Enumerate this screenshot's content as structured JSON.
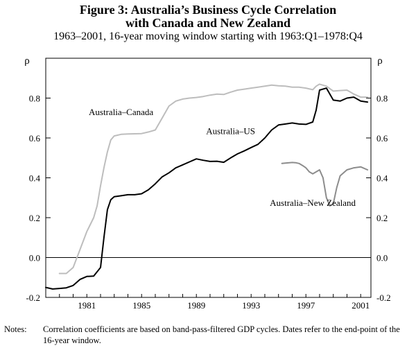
{
  "title_line1": "Figure 3: Australia’s Business Cycle Correlation",
  "title_line2": "with Canada and New Zealand",
  "subtitle": "1963–2001, 16-year moving window starting with 1963:Q1–1978:Q4",
  "notes_label": "Notes:",
  "notes_text": "Correlation coefficients are based on band-pass-filtered GDP cycles. Dates refer to the end-point of the 16-year window.",
  "chart_data": {
    "type": "line",
    "x_unit": "year (end-point of window)",
    "y_axis_label_left": "ρ",
    "y_axis_label_right": "ρ",
    "xlim": [
      1978.0,
      2001.75
    ],
    "ylim": [
      -0.2,
      1.0
    ],
    "x_ticks": [
      1981,
      1985,
      1989,
      1993,
      1997,
      2001
    ],
    "y_ticks": [
      -0.2,
      0.0,
      0.2,
      0.4,
      0.6,
      0.8
    ],
    "y_tick_labels": [
      "-0.2",
      "0.0",
      "0.2",
      "0.4",
      "0.6",
      "0.8"
    ],
    "grid": false,
    "zero_line": true,
    "series": [
      {
        "name": "Australia–US",
        "color": "#000000",
        "x": [
          1978.0,
          1978.5,
          1979.0,
          1979.5,
          1980.0,
          1980.5,
          1981.0,
          1981.5,
          1982.0,
          1982.25,
          1982.5,
          1982.75,
          1983.0,
          1983.5,
          1984.0,
          1984.5,
          1985.0,
          1985.5,
          1986.0,
          1986.5,
          1987.0,
          1987.5,
          1988.0,
          1988.5,
          1989.0,
          1989.5,
          1990.0,
          1990.5,
          1991.0,
          1991.5,
          1992.0,
          1992.5,
          1993.0,
          1993.5,
          1994.0,
          1994.5,
          1995.0,
          1995.5,
          1996.0,
          1996.5,
          1997.0,
          1997.5,
          1997.75,
          1998.0,
          1998.5,
          1999.0,
          1999.5,
          2000.0,
          2000.5,
          2001.0,
          2001.5
        ],
        "y": [
          -0.15,
          -0.158,
          -0.155,
          -0.152,
          -0.14,
          -0.11,
          -0.095,
          -0.093,
          -0.05,
          0.1,
          0.24,
          0.29,
          0.305,
          0.31,
          0.315,
          0.315,
          0.32,
          0.34,
          0.37,
          0.405,
          0.425,
          0.45,
          0.465,
          0.48,
          0.495,
          0.488,
          0.482,
          0.483,
          0.478,
          0.5,
          0.52,
          0.535,
          0.552,
          0.568,
          0.6,
          0.64,
          0.665,
          0.67,
          0.675,
          0.67,
          0.668,
          0.68,
          0.74,
          0.84,
          0.85,
          0.79,
          0.785,
          0.8,
          0.805,
          0.785,
          0.78
        ]
      },
      {
        "name": "Australia–Canada",
        "color": "#bdbdbd",
        "x": [
          1979.0,
          1979.5,
          1980.0,
          1980.5,
          1981.0,
          1981.5,
          1981.75,
          1982.0,
          1982.25,
          1982.5,
          1982.75,
          1983.0,
          1983.5,
          1984.0,
          1984.5,
          1985.0,
          1985.5,
          1986.0,
          1986.5,
          1987.0,
          1987.5,
          1988.0,
          1988.5,
          1989.0,
          1989.5,
          1990.0,
          1990.5,
          1991.0,
          1991.5,
          1992.0,
          1992.5,
          1993.0,
          1993.5,
          1994.0,
          1994.5,
          1995.0,
          1995.5,
          1996.0,
          1996.5,
          1997.0,
          1997.5,
          1997.75,
          1998.0,
          1998.5,
          1999.0,
          1999.5,
          2000.0,
          2000.5,
          2001.0,
          2001.5
        ],
        "y": [
          -0.08,
          -0.08,
          -0.05,
          0.04,
          0.13,
          0.2,
          0.26,
          0.36,
          0.45,
          0.53,
          0.59,
          0.61,
          0.618,
          0.62,
          0.621,
          0.622,
          0.63,
          0.64,
          0.7,
          0.76,
          0.785,
          0.795,
          0.8,
          0.803,
          0.808,
          0.815,
          0.82,
          0.818,
          0.83,
          0.84,
          0.845,
          0.85,
          0.855,
          0.86,
          0.865,
          0.862,
          0.86,
          0.855,
          0.855,
          0.85,
          0.842,
          0.86,
          0.87,
          0.86,
          0.835,
          0.838,
          0.84,
          0.82,
          0.805,
          0.805
        ]
      },
      {
        "name": "Australia–New Zealand",
        "color": "#8c8c8c",
        "x": [
          1995.25,
          1995.5,
          1996.0,
          1996.25,
          1996.5,
          1996.75,
          1997.0,
          1997.25,
          1997.5,
          1997.75,
          1998.0,
          1998.25,
          1998.5,
          1998.75,
          1999.0,
          1999.25,
          1999.5,
          2000.0,
          2000.5,
          2001.0,
          2001.5
        ],
        "y": [
          0.472,
          0.474,
          0.477,
          0.476,
          0.472,
          0.462,
          0.45,
          0.43,
          0.42,
          0.43,
          0.44,
          0.4,
          0.3,
          0.26,
          0.27,
          0.35,
          0.41,
          0.44,
          0.45,
          0.455,
          0.44
        ]
      }
    ],
    "annotations": [
      {
        "text": "Australia–Canada",
        "series": "Australia–Canada",
        "x": 1983.5,
        "y": 0.715
      },
      {
        "text": "Australia–US",
        "series": "Australia–US",
        "x": 1991.5,
        "y": 0.62
      },
      {
        "text": "Australia–New Zealand",
        "series": "Australia–New Zealand",
        "x": 1997.5,
        "y": 0.26
      }
    ]
  }
}
